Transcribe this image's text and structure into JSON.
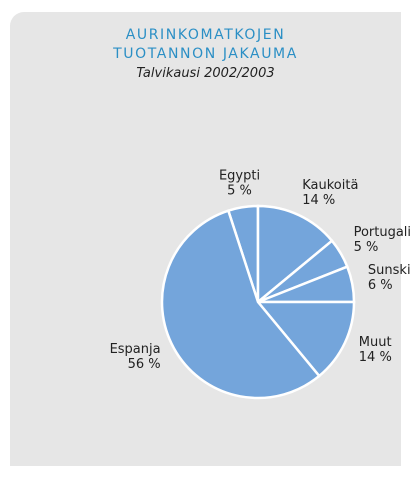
{
  "chart_data": {
    "type": "pie",
    "title": "AURINKOMATKOJEN TUOTANNON JAKAUMA",
    "subtitle": "Talvikausi 2002/2003",
    "categories": [
      "Egypti",
      "Kaukoitä",
      "Portugali",
      "Sunski",
      "Muut",
      "Espanja"
    ],
    "values": [
      5,
      14,
      5,
      6,
      14,
      56
    ],
    "value_labels": [
      "5 %",
      "14 %",
      "5 %",
      "6 %",
      "14 %",
      "56 %"
    ],
    "color": "#74a5db"
  }
}
